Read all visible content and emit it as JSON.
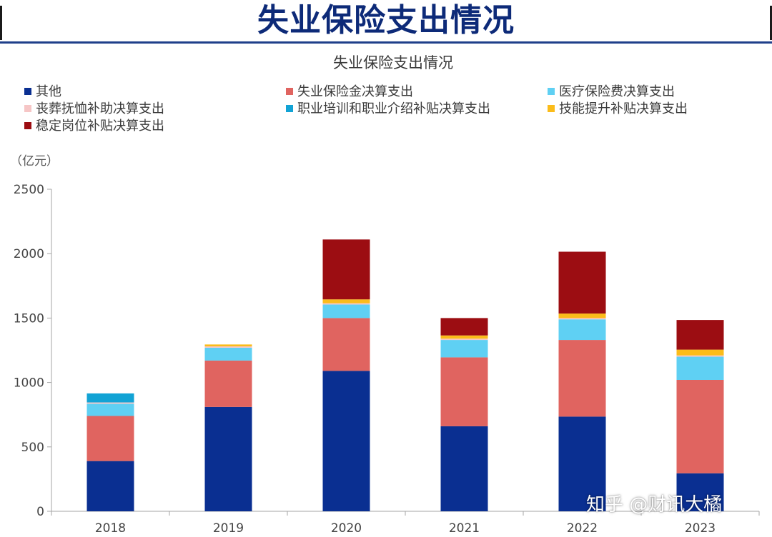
{
  "header": {
    "title": "失业保险支出情况"
  },
  "chart_data": {
    "type": "bar",
    "stacked": true,
    "title": "失业保险支出情况",
    "unit_label": "（亿元）",
    "categories": [
      "2018",
      "2019",
      "2020",
      "2021",
      "2022",
      "2023"
    ],
    "ylim": [
      0,
      2500
    ],
    "yticks": [
      0,
      500,
      1000,
      1500,
      2000,
      2500
    ],
    "legend_position": "top",
    "series": [
      {
        "name": "其他",
        "color": "#0a2f91",
        "values": [
          390,
          810,
          1090,
          660,
          735,
          295
        ]
      },
      {
        "name": "失业保险金决算支出",
        "color": "#e06460",
        "values": [
          350,
          360,
          410,
          535,
          595,
          725
        ]
      },
      {
        "name": "医疗保险费决算支出",
        "color": "#5fd0f3",
        "values": [
          95,
          100,
          105,
          135,
          160,
          180
        ]
      },
      {
        "name": "丧葬抚恤补助决算支出",
        "color": "#f6c6c6",
        "values": [
          10,
          10,
          10,
          10,
          10,
          10
        ]
      },
      {
        "name": "职业培训和职业介绍补贴决算支出",
        "color": "#12a3d5",
        "values": [
          70,
          0,
          0,
          0,
          0,
          0
        ]
      },
      {
        "name": "技能提升补贴决算支出",
        "color": "#fbbc1a",
        "values": [
          0,
          15,
          30,
          25,
          35,
          45
        ]
      },
      {
        "name": "稳定岗位补贴决算支出",
        "color": "#9c0d12",
        "values": [
          0,
          0,
          465,
          135,
          480,
          230
        ]
      }
    ]
  },
  "watermark": "知乎 @财讯大橘"
}
